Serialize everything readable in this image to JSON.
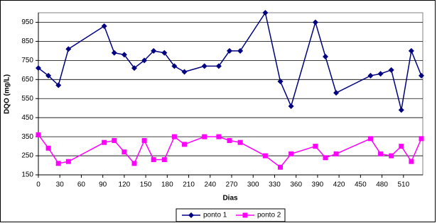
{
  "chart_data": {
    "type": "line",
    "y_label": "DQO (mg/L)",
    "x_label": "Dias",
    "x": [
      0,
      14,
      28,
      42,
      92,
      106,
      120,
      134,
      148,
      161,
      176,
      190,
      204,
      232,
      252,
      267,
      282,
      317,
      338,
      353,
      387,
      401,
      416,
      464,
      478,
      493,
      507,
      521,
      535
    ],
    "series": [
      {
        "name": "ponto 1",
        "color": "#000080",
        "marker": "diamond",
        "values": [
          710,
          670,
          620,
          810,
          930,
          790,
          780,
          710,
          750,
          800,
          790,
          720,
          690,
          720,
          720,
          800,
          800,
          1000,
          640,
          510,
          950,
          770,
          580,
          670,
          680,
          700,
          490,
          800,
          670
        ]
      },
      {
        "name": "ponto 2",
        "color": "#ff00ff",
        "marker": "square",
        "values": [
          360,
          290,
          210,
          220,
          320,
          330,
          270,
          210,
          330,
          230,
          230,
          350,
          310,
          350,
          350,
          330,
          320,
          250,
          190,
          260,
          300,
          240,
          260,
          340,
          260,
          250,
          300,
          220,
          340
        ]
      }
    ],
    "xlim": [
      0,
      537
    ],
    "ylim": [
      150,
      1000
    ],
    "xticks": [
      0,
      30,
      60,
      90,
      120,
      150,
      180,
      210,
      240,
      270,
      300,
      330,
      360,
      390,
      420,
      450,
      480,
      510
    ],
    "yticks": [
      150,
      250,
      350,
      450,
      550,
      650,
      750,
      850,
      950
    ],
    "grid": true,
    "legend": "bottom"
  }
}
